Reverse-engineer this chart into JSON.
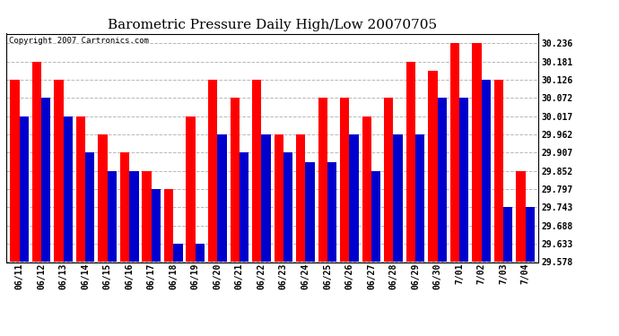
{
  "title": "Barometric Pressure Daily High/Low 20070705",
  "copyright": "Copyright 2007 Cartronics.com",
  "dates": [
    "06/11",
    "06/12",
    "06/13",
    "06/14",
    "06/15",
    "06/16",
    "06/17",
    "06/18",
    "06/19",
    "06/20",
    "06/21",
    "06/22",
    "06/23",
    "06/24",
    "06/25",
    "06/26",
    "06/27",
    "06/28",
    "06/29",
    "06/30",
    "7/01",
    "7/02",
    "7/03",
    "7/04"
  ],
  "highs": [
    30.126,
    30.181,
    30.126,
    30.017,
    29.962,
    29.907,
    29.852,
    29.797,
    30.017,
    30.126,
    30.072,
    30.126,
    29.962,
    29.962,
    30.072,
    30.072,
    30.017,
    30.072,
    30.181,
    30.154,
    30.236,
    30.236,
    30.126,
    29.852
  ],
  "lows": [
    30.017,
    30.072,
    30.017,
    29.907,
    29.852,
    29.852,
    29.797,
    29.633,
    29.633,
    29.962,
    29.907,
    29.962,
    29.907,
    29.878,
    29.878,
    29.962,
    29.852,
    29.962,
    29.962,
    30.072,
    30.072,
    30.126,
    29.743,
    29.743
  ],
  "yticks": [
    29.578,
    29.633,
    29.688,
    29.743,
    29.797,
    29.852,
    29.907,
    29.962,
    30.017,
    30.072,
    30.126,
    30.181,
    30.236
  ],
  "ymin": 29.578,
  "ymax": 30.265,
  "bar_width": 0.42,
  "high_color": "#ff0000",
  "low_color": "#0000cc",
  "bg_color": "#ffffff",
  "grid_color": "#b0b0b0",
  "title_fontsize": 11,
  "axis_fontsize": 7,
  "copyright_fontsize": 6.5
}
